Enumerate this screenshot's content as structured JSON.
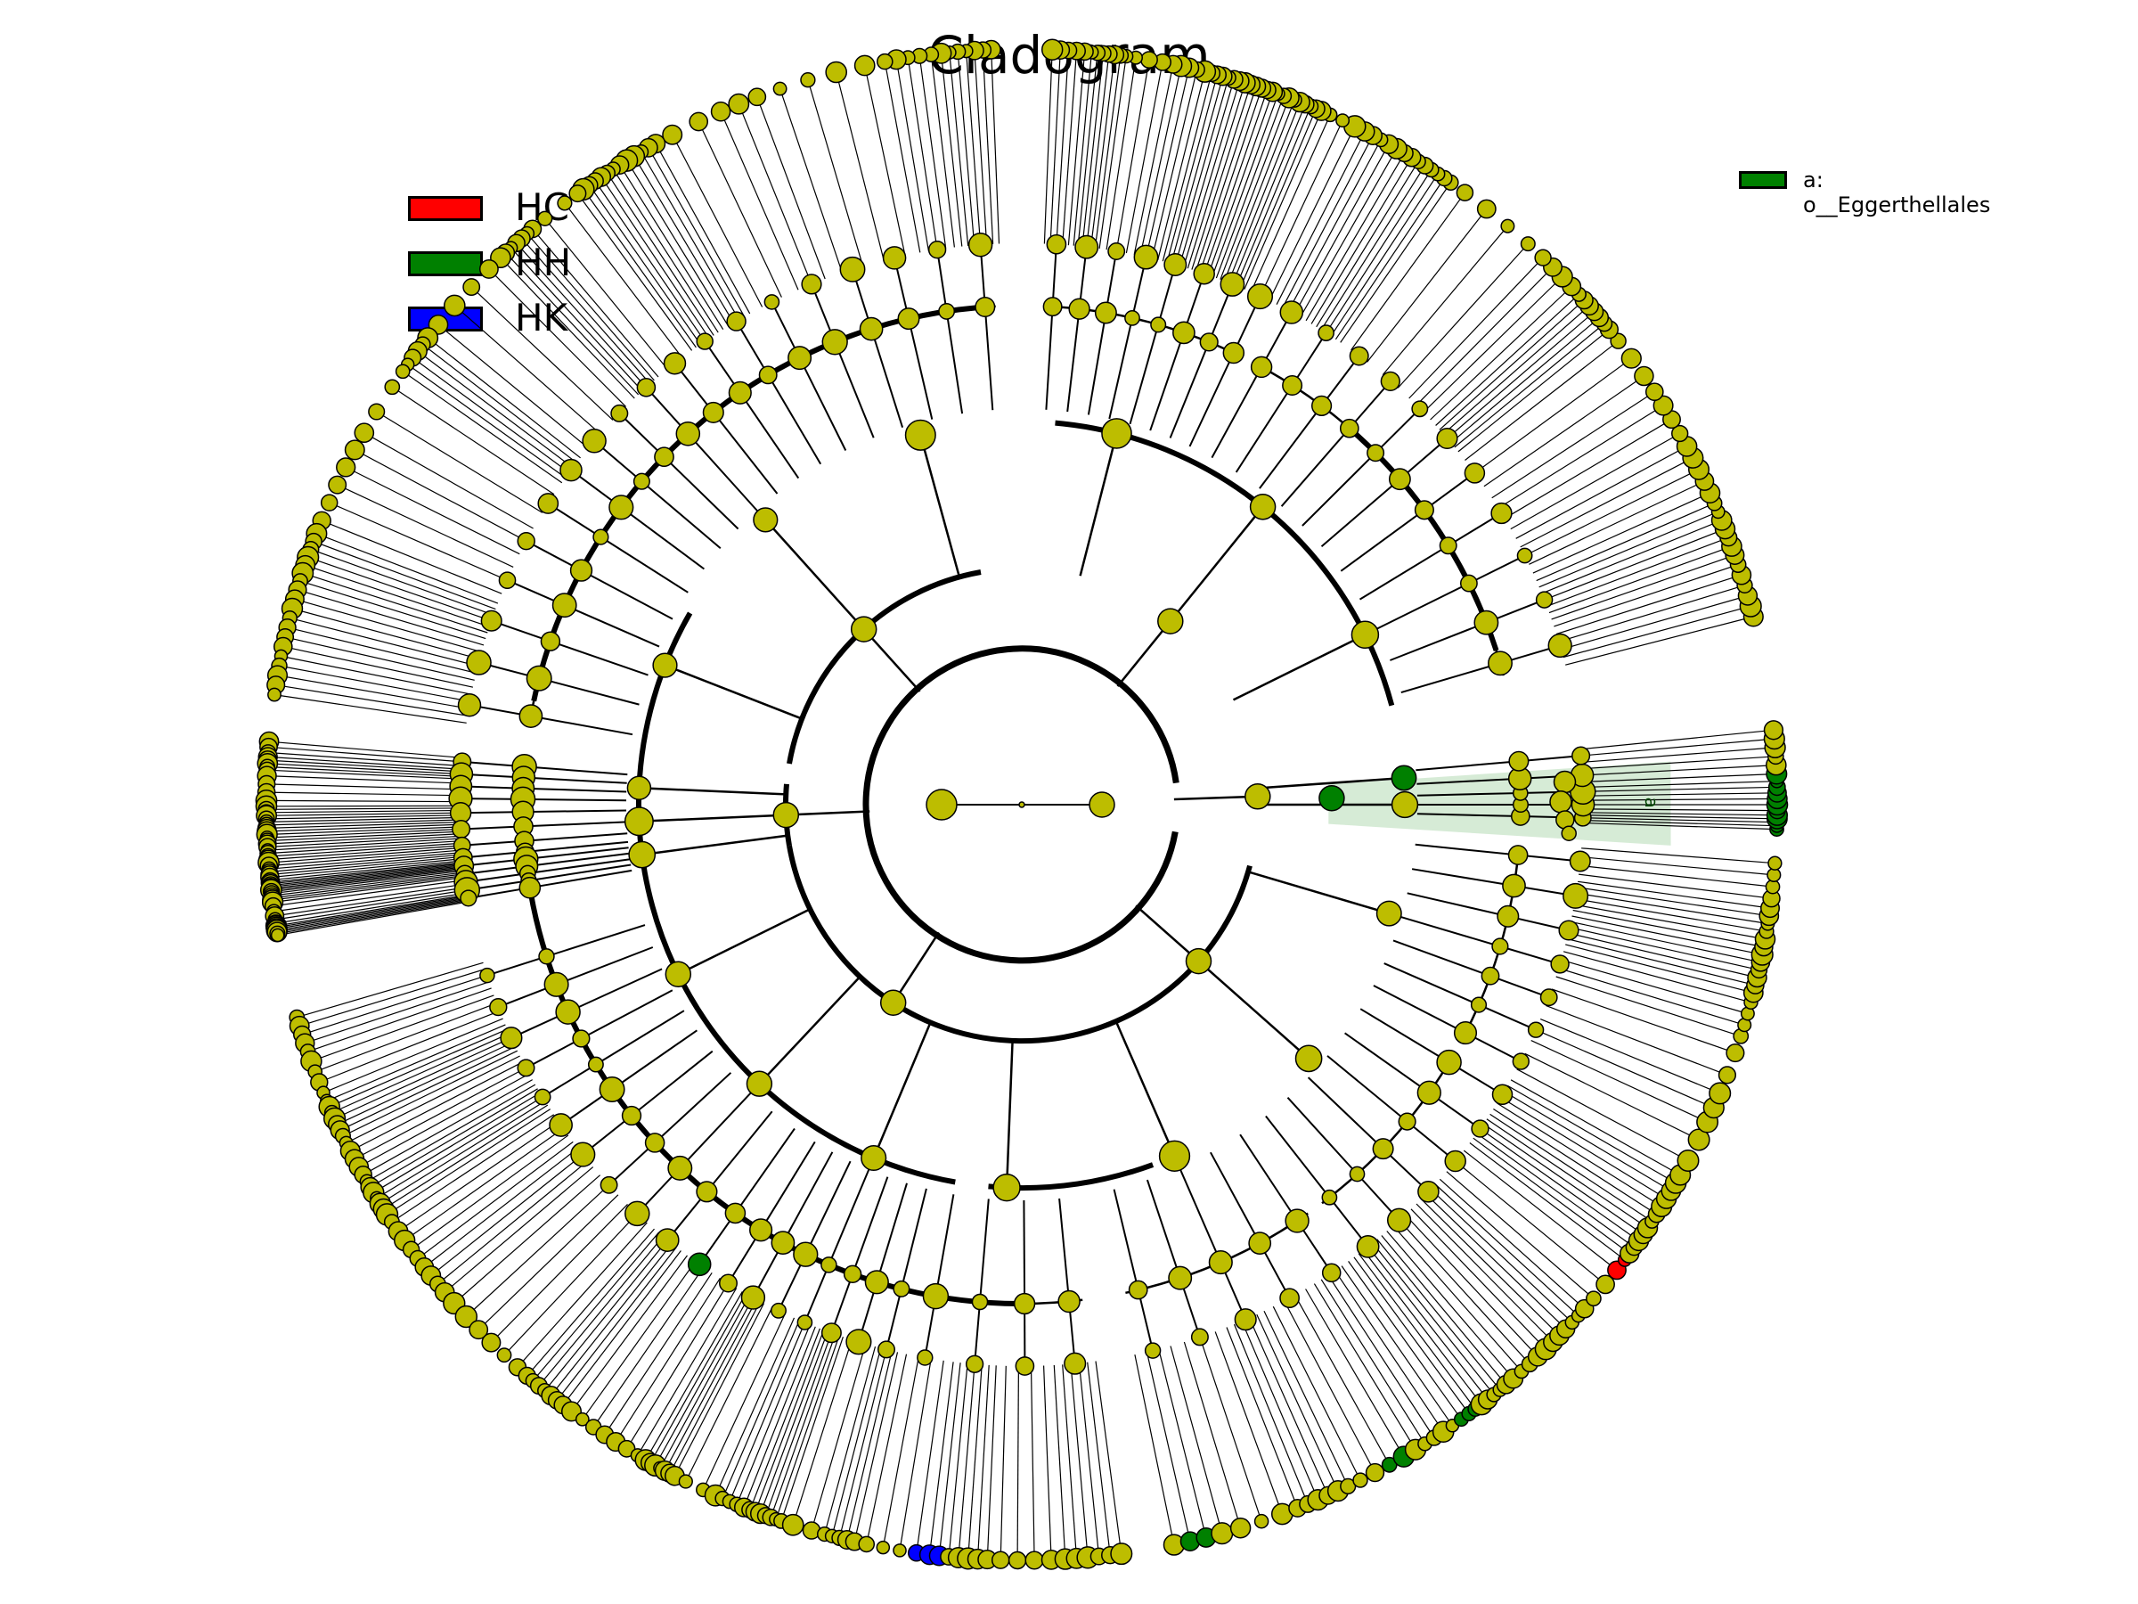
{
  "title": "Cladogram",
  "legend": [
    {
      "label": "HC",
      "color": "#ff0000"
    },
    {
      "label": "HH",
      "color": "#008000"
    },
    {
      "label": "HK",
      "color": "#0000ff"
    }
  ],
  "clade_legend": [
    {
      "label": "a: o__Eggerthellales",
      "color": "#008000"
    }
  ],
  "highlight_label": "a",
  "colors": {
    "node_default": "#bdbd00",
    "node_stroke": "#000000",
    "branch": "#000000",
    "highlight_band": "#cfe8cf"
  },
  "tree": {
    "levels": 6,
    "highlighted_clades": [
      {
        "group": "HH",
        "name": "o__Eggerthellales",
        "label": "a"
      }
    ]
  }
}
